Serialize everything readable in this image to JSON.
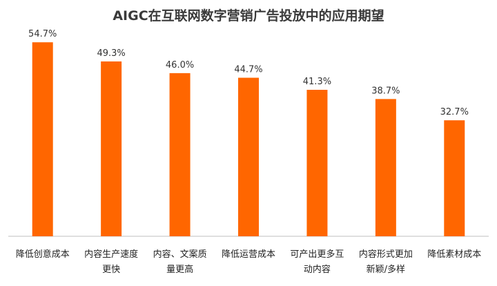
{
  "chart_data": {
    "type": "bar",
    "title": "AIGC在互联网数字营销广告投放中的应用期望",
    "xlabel": "",
    "ylabel": "",
    "categories": [
      [
        "降低创意成本"
      ],
      [
        "内容生产速度",
        "更快"
      ],
      [
        "内容、文案质",
        "量更高"
      ],
      [
        "降低运营成本"
      ],
      [
        "可产出更多互",
        "动内容"
      ],
      [
        "内容形式更加",
        "新颖/多样"
      ],
      [
        "降低素材成本"
      ]
    ],
    "values": [
      54.7,
      49.3,
      46.0,
      44.7,
      41.3,
      38.7,
      32.7
    ],
    "value_labels": [
      "54.7%",
      "49.3%",
      "46.0%",
      "44.7%",
      "41.3%",
      "38.7%",
      "32.7%"
    ],
    "ylim": [
      0,
      60
    ],
    "grid": false,
    "legend": "none",
    "bar_color": "#ff6600",
    "axis_color": "#bfbfbf"
  }
}
